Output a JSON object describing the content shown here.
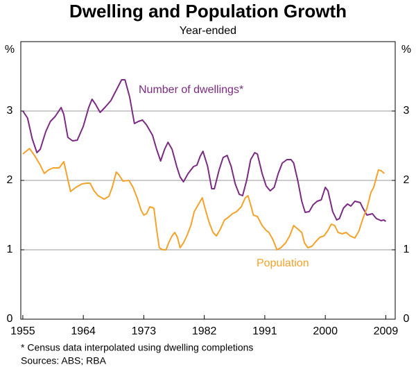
{
  "chart_data": {
    "type": "line",
    "title": "Dwelling and Population Growth",
    "subtitle": "Year-ended",
    "y_label": "%",
    "y2_label": "%",
    "footnote": "*   Census data interpolated using dwelling completions",
    "source": "Sources: ABS; RBA",
    "xlim": [
      1954.7,
      2010.4
    ],
    "xticks": [
      1955,
      1964,
      1973,
      1982,
      1991,
      2000,
      2009
    ],
    "ylim": [
      0,
      4
    ],
    "yticks": [
      0,
      1,
      2,
      3
    ],
    "y2lim": [
      0,
      4
    ],
    "y2ticks": [
      0,
      1,
      2,
      3
    ],
    "grid": true,
    "series": [
      {
        "name": "Number of dwellings*",
        "color": "#7b2a84",
        "x": [
          1955.0,
          1955.7,
          1956.4,
          1957.1,
          1957.6,
          1958.4,
          1959.1,
          1959.8,
          1960.7,
          1961.1,
          1961.7,
          1962.4,
          1963.1,
          1964.0,
          1964.8,
          1965.3,
          1965.8,
          1966.5,
          1967.2,
          1968.1,
          1968.9,
          1969.7,
          1970.2,
          1970.9,
          1971.6,
          1972.2,
          1972.8,
          1973.4,
          1974.3,
          1974.9,
          1975.5,
          1976.1,
          1976.6,
          1977.2,
          1977.9,
          1978.4,
          1978.9,
          1979.6,
          1980.4,
          1980.9,
          1981.4,
          1981.8,
          1982.5,
          1983.1,
          1983.5,
          1984.2,
          1984.8,
          1985.4,
          1986.0,
          1986.6,
          1987.2,
          1987.7,
          1988.3,
          1988.9,
          1989.5,
          1989.9,
          1990.6,
          1991.2,
          1991.8,
          1992.4,
          1993.0,
          1993.6,
          1994.3,
          1994.9,
          1995.3,
          1995.9,
          1996.5,
          1997.0,
          1997.6,
          1998.2,
          1998.8,
          1999.4,
          2000.0,
          2000.4,
          2001.1,
          2001.7,
          2002.1,
          2002.7,
          2003.3,
          2003.8,
          2004.4,
          2005.2,
          2005.6,
          2006.2,
          2007.0,
          2007.6,
          2008.3,
          2008.7,
          2009.0
        ],
        "values": [
          3.0,
          2.9,
          2.6,
          2.4,
          2.45,
          2.7,
          2.85,
          2.92,
          3.05,
          2.95,
          2.62,
          2.57,
          2.58,
          2.78,
          3.05,
          3.17,
          3.1,
          2.98,
          3.05,
          3.15,
          3.3,
          3.45,
          3.45,
          3.2,
          2.82,
          2.85,
          2.87,
          2.8,
          2.65,
          2.45,
          2.28,
          2.45,
          2.55,
          2.45,
          2.2,
          2.05,
          1.98,
          2.1,
          2.2,
          2.22,
          2.35,
          2.42,
          2.2,
          1.88,
          1.88,
          2.15,
          2.33,
          2.36,
          2.2,
          1.95,
          1.8,
          1.78,
          2.0,
          2.3,
          2.4,
          2.38,
          2.1,
          1.92,
          1.85,
          1.9,
          2.1,
          2.25,
          2.3,
          2.3,
          2.25,
          2.0,
          1.7,
          1.54,
          1.55,
          1.65,
          1.7,
          1.72,
          1.9,
          1.85,
          1.55,
          1.43,
          1.45,
          1.6,
          1.66,
          1.63,
          1.7,
          1.68,
          1.6,
          1.5,
          1.52,
          1.45,
          1.42,
          1.43,
          1.41
        ]
      },
      {
        "name": "Population",
        "color": "#f5a22b",
        "x": [
          1955.0,
          1956.0,
          1956.8,
          1957.6,
          1958.2,
          1958.8,
          1959.5,
          1960.4,
          1961.1,
          1961.5,
          1962.1,
          1962.9,
          1963.8,
          1964.5,
          1965.0,
          1965.6,
          1966.2,
          1967.1,
          1967.8,
          1968.3,
          1968.9,
          1969.3,
          1969.9,
          1970.8,
          1971.4,
          1972.0,
          1972.6,
          1973.0,
          1973.4,
          1973.9,
          1974.5,
          1974.9,
          1975.3,
          1975.8,
          1976.3,
          1976.7,
          1977.2,
          1977.6,
          1978.0,
          1978.4,
          1978.9,
          1979.4,
          1980.0,
          1980.5,
          1981.1,
          1981.7,
          1982.1,
          1982.7,
          1983.3,
          1983.8,
          1984.4,
          1985.0,
          1985.6,
          1986.2,
          1986.8,
          1987.5,
          1988.1,
          1988.5,
          1988.9,
          1989.3,
          1989.9,
          1990.6,
          1991.2,
          1991.6,
          1992.2,
          1992.8,
          1993.4,
          1994.1,
          1994.7,
          1995.3,
          1995.9,
          1996.5,
          1996.9,
          1997.4,
          1998.0,
          1998.6,
          1999.2,
          1999.8,
          2000.4,
          2000.9,
          2001.4,
          2001.9,
          2002.5,
          2003.1,
          2003.7,
          2004.4,
          2005.0,
          2005.6,
          2006.2,
          2006.8,
          2007.2,
          2007.9,
          2008.3,
          2008.8
        ],
        "values": [
          2.38,
          2.46,
          2.35,
          2.22,
          2.1,
          2.15,
          2.18,
          2.18,
          2.27,
          2.1,
          1.84,
          1.9,
          1.95,
          1.96,
          1.96,
          1.85,
          1.78,
          1.73,
          1.77,
          1.9,
          2.12,
          2.08,
          1.99,
          2.0,
          1.9,
          1.75,
          1.57,
          1.5,
          1.52,
          1.62,
          1.6,
          1.3,
          1.03,
          1.0,
          1.0,
          1.1,
          1.2,
          1.25,
          1.18,
          1.03,
          1.1,
          1.2,
          1.35,
          1.55,
          1.65,
          1.75,
          1.6,
          1.4,
          1.25,
          1.2,
          1.3,
          1.43,
          1.47,
          1.52,
          1.55,
          1.62,
          1.75,
          1.78,
          1.65,
          1.5,
          1.48,
          1.35,
          1.28,
          1.25,
          1.15,
          1.0,
          1.03,
          1.1,
          1.2,
          1.35,
          1.3,
          1.25,
          1.1,
          1.03,
          1.05,
          1.12,
          1.18,
          1.2,
          1.28,
          1.37,
          1.35,
          1.25,
          1.23,
          1.25,
          1.2,
          1.17,
          1.27,
          1.45,
          1.6,
          1.83,
          1.9,
          2.15,
          2.14,
          2.1
        ]
      }
    ]
  }
}
